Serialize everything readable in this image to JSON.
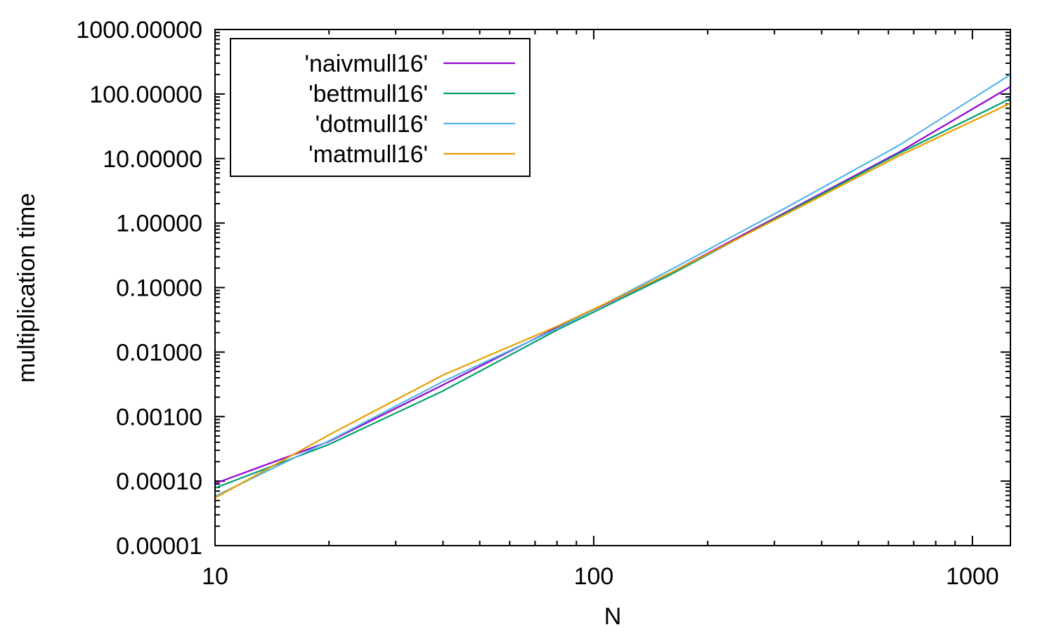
{
  "chart_data": {
    "type": "line",
    "title": "",
    "xlabel": "N",
    "ylabel": "multiplication time",
    "xscale": "log",
    "yscale": "log",
    "xlim": [
      10,
      1260
    ],
    "ylim": [
      1e-05,
      1000
    ],
    "xticks": [
      {
        "value": 10,
        "label": "10"
      },
      {
        "value": 100,
        "label": "100"
      },
      {
        "value": 1000,
        "label": "1000"
      }
    ],
    "yticks": [
      {
        "value": 1e-05,
        "label": "0.00001"
      },
      {
        "value": 0.0001,
        "label": "0.00010"
      },
      {
        "value": 0.001,
        "label": "0.00100"
      },
      {
        "value": 0.01,
        "label": "0.01000"
      },
      {
        "value": 0.1,
        "label": "0.10000"
      },
      {
        "value": 1,
        "label": "1.00000"
      },
      {
        "value": 10,
        "label": "10.00000"
      },
      {
        "value": 100,
        "label": "100.00000"
      },
      {
        "value": 1000,
        "label": "1000.00000"
      }
    ],
    "legend_position": "top-left",
    "grid": false,
    "series": [
      {
        "name": "'naivmull16'",
        "color": "#9400d3",
        "x": [
          10,
          20,
          40,
          80,
          160,
          320,
          640,
          1260
        ],
        "y": [
          9.2e-05,
          0.00041,
          0.0031,
          0.024,
          0.17,
          1.45,
          12.5,
          130
        ]
      },
      {
        "name": "'bettmull16'",
        "color": "#009e73",
        "x": [
          10,
          20,
          40,
          80,
          160,
          320,
          640,
          1260
        ],
        "y": [
          7.8e-05,
          0.00037,
          0.0025,
          0.022,
          0.16,
          1.4,
          12,
          85
        ]
      },
      {
        "name": "'dotmull16'",
        "color": "#56b4e9",
        "x": [
          10,
          20,
          40,
          80,
          160,
          320,
          640,
          1260
        ],
        "y": [
          5.8e-05,
          0.00042,
          0.0035,
          0.023,
          0.19,
          1.7,
          16,
          200
        ]
      },
      {
        "name": "'matmull16'",
        "color": "#e69f00",
        "x": [
          10,
          20,
          40,
          80,
          160,
          320,
          640,
          1260
        ],
        "y": [
          5.5e-05,
          0.00052,
          0.0044,
          0.025,
          0.17,
          1.35,
          11,
          72
        ]
      }
    ]
  }
}
